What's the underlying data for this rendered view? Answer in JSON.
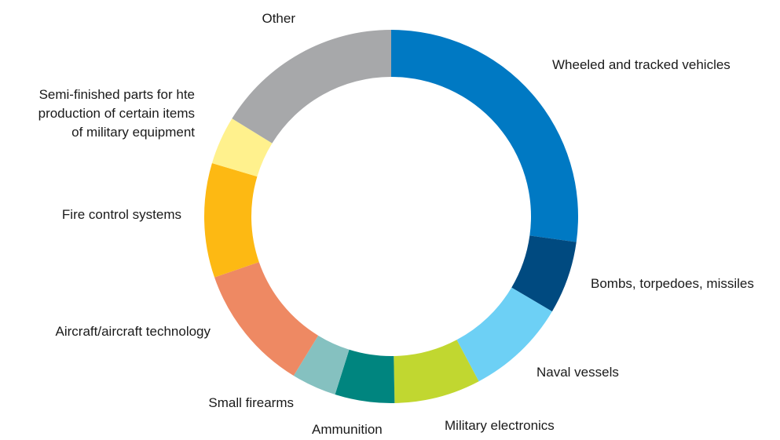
{
  "chart_data": {
    "type": "pie",
    "donut": true,
    "title": "",
    "categories": [
      "Wheeled and tracked vehicles",
      "Bombs, torpedoes, missiles",
      "Naval vessels",
      "Military electronics",
      "Ammunition",
      "Small firearms",
      "Aircraft/aircraft technology",
      "Fire control systems",
      "Semi-finished parts for hte production of certain items of military equipment",
      "Other"
    ],
    "label_lines": [
      [
        "Wheeled and tracked vehicles"
      ],
      [
        "Bombs, torpedoes, missiles"
      ],
      [
        "Naval vessels"
      ],
      [
        "Military electronics"
      ],
      [
        "Ammunition"
      ],
      [
        "Small firearms"
      ],
      [
        "Aircraft/aircraft technology"
      ],
      [
        "Fire control systems"
      ],
      [
        "Semi-finished parts for hte",
        "production of certain items",
        "of military equipment"
      ],
      [
        "Other"
      ]
    ],
    "values": [
      28.0,
      6.5,
      9.0,
      7.7,
      5.3,
      4.0,
      11.3,
      10.2,
      4.3,
      16.7
    ],
    "colors": [
      "#0079c3",
      "#004a80",
      "#6dd0f5",
      "#c1d730",
      "#00857f",
      "#85c1c0",
      "#ee8963",
      "#fdb913",
      "#fff18d",
      "#a7a8aa"
    ]
  }
}
